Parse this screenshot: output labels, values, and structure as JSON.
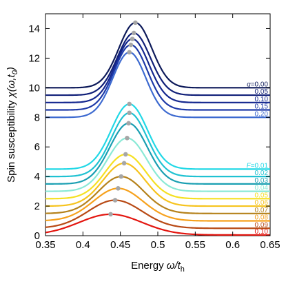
{
  "chart_data": {
    "type": "line",
    "xlabel": "Energy ω/t_h",
    "ylabel": "Spin susceptibility χ(ω,t_0)",
    "xlim": [
      0.35,
      0.65
    ],
    "ylim": [
      0,
      15
    ],
    "xticks": [
      "0.35",
      "0.4",
      "0.45",
      "0.5",
      "0.55",
      "0.6",
      "0.65"
    ],
    "yticks": [
      "0",
      "2",
      "4",
      "6",
      "8",
      "10",
      "12",
      "14"
    ],
    "grid": false,
    "groups": [
      {
        "label": "g=0.00",
        "series": [
          {
            "name": "g=0.00",
            "color": "#0d1a5a",
            "baseline": 10.0,
            "peak_x": 0.47,
            "peak_y": 14.4,
            "sigma": 0.022
          },
          {
            "name": "0.05",
            "color": "#101f78",
            "baseline": 9.5,
            "peak_x": 0.468,
            "peak_y": 13.7,
            "sigma": 0.022
          },
          {
            "name": "0.10",
            "color": "#14278f",
            "baseline": 9.0,
            "peak_x": 0.466,
            "peak_y": 13.3,
            "sigma": 0.022
          },
          {
            "name": "0.15",
            "color": "#1e3aa8",
            "baseline": 8.5,
            "peak_x": 0.464,
            "peak_y": 12.9,
            "sigma": 0.022
          },
          {
            "name": "0.20",
            "color": "#3d6ad0",
            "baseline": 8.0,
            "peak_x": 0.462,
            "peak_y": 12.4,
            "sigma": 0.022
          }
        ]
      },
      {
        "label": "F=0.01",
        "series": [
          {
            "name": "F=0.01",
            "color": "#21d8e6",
            "baseline": 4.5,
            "peak_x": 0.462,
            "peak_y": 8.9,
            "sigma": 0.024
          },
          {
            "name": "0.02",
            "color": "#1fc2d2",
            "baseline": 4.0,
            "peak_x": 0.462,
            "peak_y": 8.3,
            "sigma": 0.024
          },
          {
            "name": "0.03",
            "color": "#1a9fb2",
            "baseline": 3.5,
            "peak_x": 0.461,
            "peak_y": 7.6,
            "sigma": 0.025
          },
          {
            "name": "0.04",
            "color": "#8ae9d6",
            "baseline": 3.0,
            "peak_x": 0.459,
            "peak_y": 6.6,
            "sigma": 0.026
          },
          {
            "name": "0.05",
            "color": "#f5e021",
            "baseline": 2.5,
            "peak_x": 0.457,
            "peak_y": 5.5,
            "sigma": 0.027
          },
          {
            "name": "0.06",
            "color": "#f6c31c",
            "baseline": 2.0,
            "peak_x": 0.455,
            "peak_y": 4.9,
            "sigma": 0.028
          },
          {
            "name": "0.07",
            "color": "#b5821c",
            "baseline": 1.5,
            "peak_x": 0.451,
            "peak_y": 4.0,
            "sigma": 0.03
          },
          {
            "name": "0.08",
            "color": "#f6a11c",
            "baseline": 1.0,
            "peak_x": 0.447,
            "peak_y": 3.2,
            "sigma": 0.033
          },
          {
            "name": "0.09",
            "color": "#b84914",
            "baseline": 0.5,
            "peak_x": 0.443,
            "peak_y": 2.4,
            "sigma": 0.036
          },
          {
            "name": "0.10",
            "color": "#e3150f",
            "baseline": 0.05,
            "peak_x": 0.437,
            "peak_y": 1.45,
            "sigma": 0.042
          }
        ]
      }
    ]
  }
}
